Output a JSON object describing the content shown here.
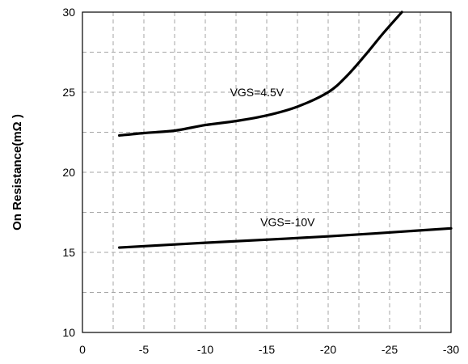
{
  "chart_data": {
    "type": "line",
    "title": "",
    "xlabel": "",
    "ylabel": "On Resistance(mΩ )",
    "xlim": [
      0,
      -30
    ],
    "ylim": [
      10,
      30
    ],
    "x_ticks": [
      "0",
      "-5",
      "-10",
      "-15",
      "-20",
      "-25",
      "-30"
    ],
    "x_tick_values": [
      0,
      -5,
      -10,
      -15,
      -20,
      -25,
      -30
    ],
    "y_ticks": [
      "10",
      "15",
      "20",
      "25",
      "30"
    ],
    "y_tick_values": [
      10,
      15,
      20,
      25,
      30
    ],
    "x_minor_grid": [
      -2.5,
      -7.5,
      -12.5,
      -17.5,
      -22.5,
      -27.5
    ],
    "y_minor_grid": [
      12.5,
      17.5,
      22.5,
      27.5
    ],
    "grid": true,
    "series": [
      {
        "name": "VGS=4.5V",
        "x": [
          -3,
          -5,
          -7.5,
          -10,
          -12.5,
          -15,
          -17.5,
          -20,
          -21.5,
          -23,
          -24.5,
          -26
        ],
        "y": [
          22.3,
          22.45,
          22.6,
          22.95,
          23.2,
          23.55,
          24.1,
          25.0,
          26.0,
          27.3,
          28.7,
          30.0
        ]
      },
      {
        "name": "VGS=-10V",
        "x": [
          -3,
          -10,
          -20,
          -30
        ],
        "y": [
          15.3,
          15.6,
          16.0,
          16.5
        ]
      }
    ],
    "annotations": [
      {
        "text": "VGS=4.5V",
        "x": -14.2,
        "y": 25.0
      },
      {
        "text": "VGS=-10V",
        "x": -16.7,
        "y": 16.9
      }
    ]
  }
}
